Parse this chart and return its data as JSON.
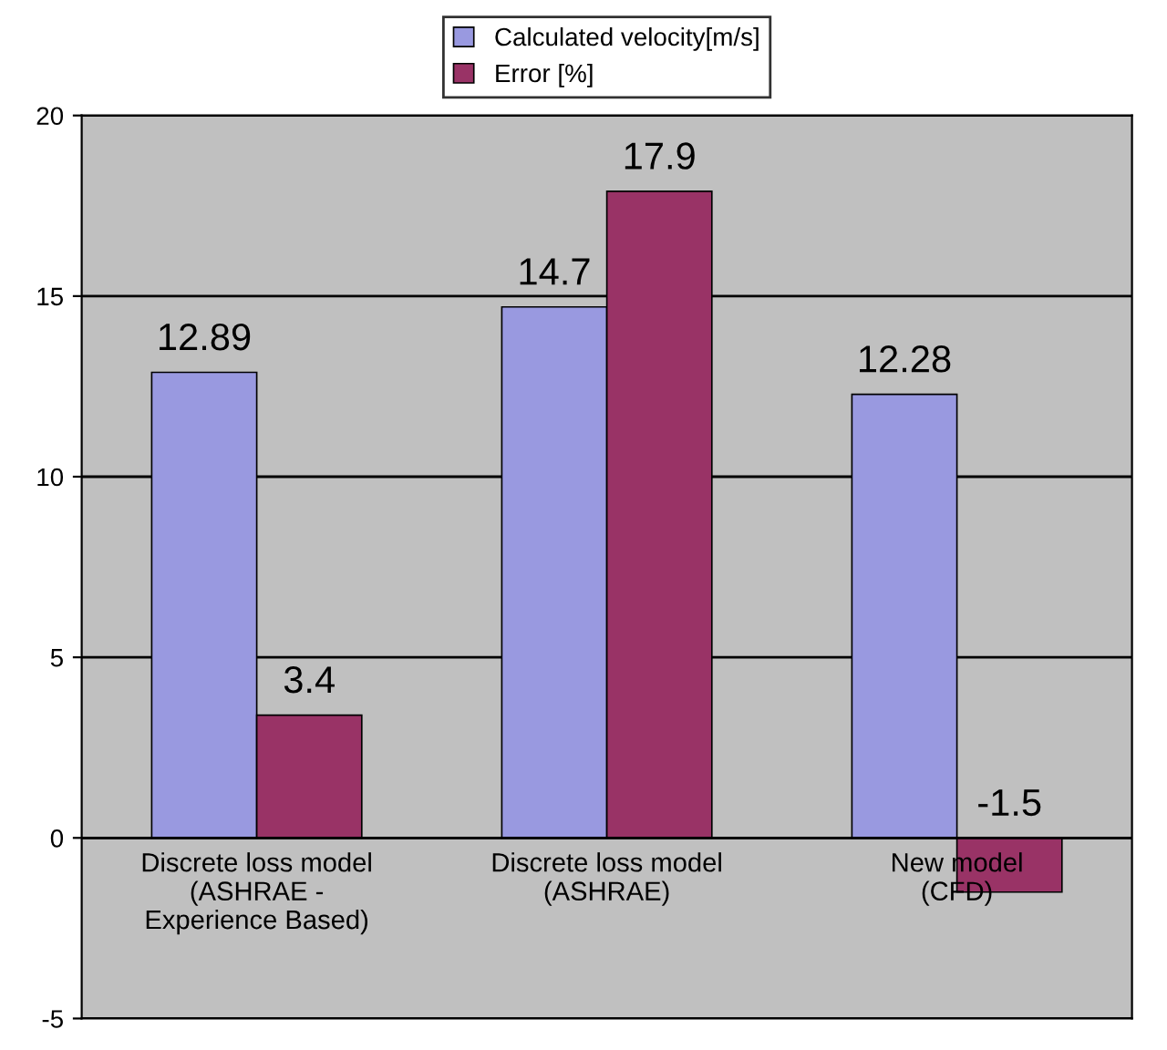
{
  "chart_data": {
    "type": "bar",
    "categories": [
      "Discrete loss model\n(ASHRAE -\nExperience Based)",
      "Discrete loss model\n(ASHRAE)",
      "New model\n(CFD)"
    ],
    "series": [
      {
        "name": "Calculated velocity[m/s]",
        "color": "#9999e0",
        "values": [
          12.89,
          14.7,
          12.28
        ]
      },
      {
        "name": "Error [%]",
        "color": "#993366",
        "values": [
          3.4,
          17.9,
          -1.5
        ]
      }
    ],
    "ylim": [
      -5,
      20
    ],
    "yticks": [
      -5,
      0,
      5,
      10,
      15,
      20
    ],
    "grid": "y",
    "legend": "top",
    "data_labels": true
  }
}
